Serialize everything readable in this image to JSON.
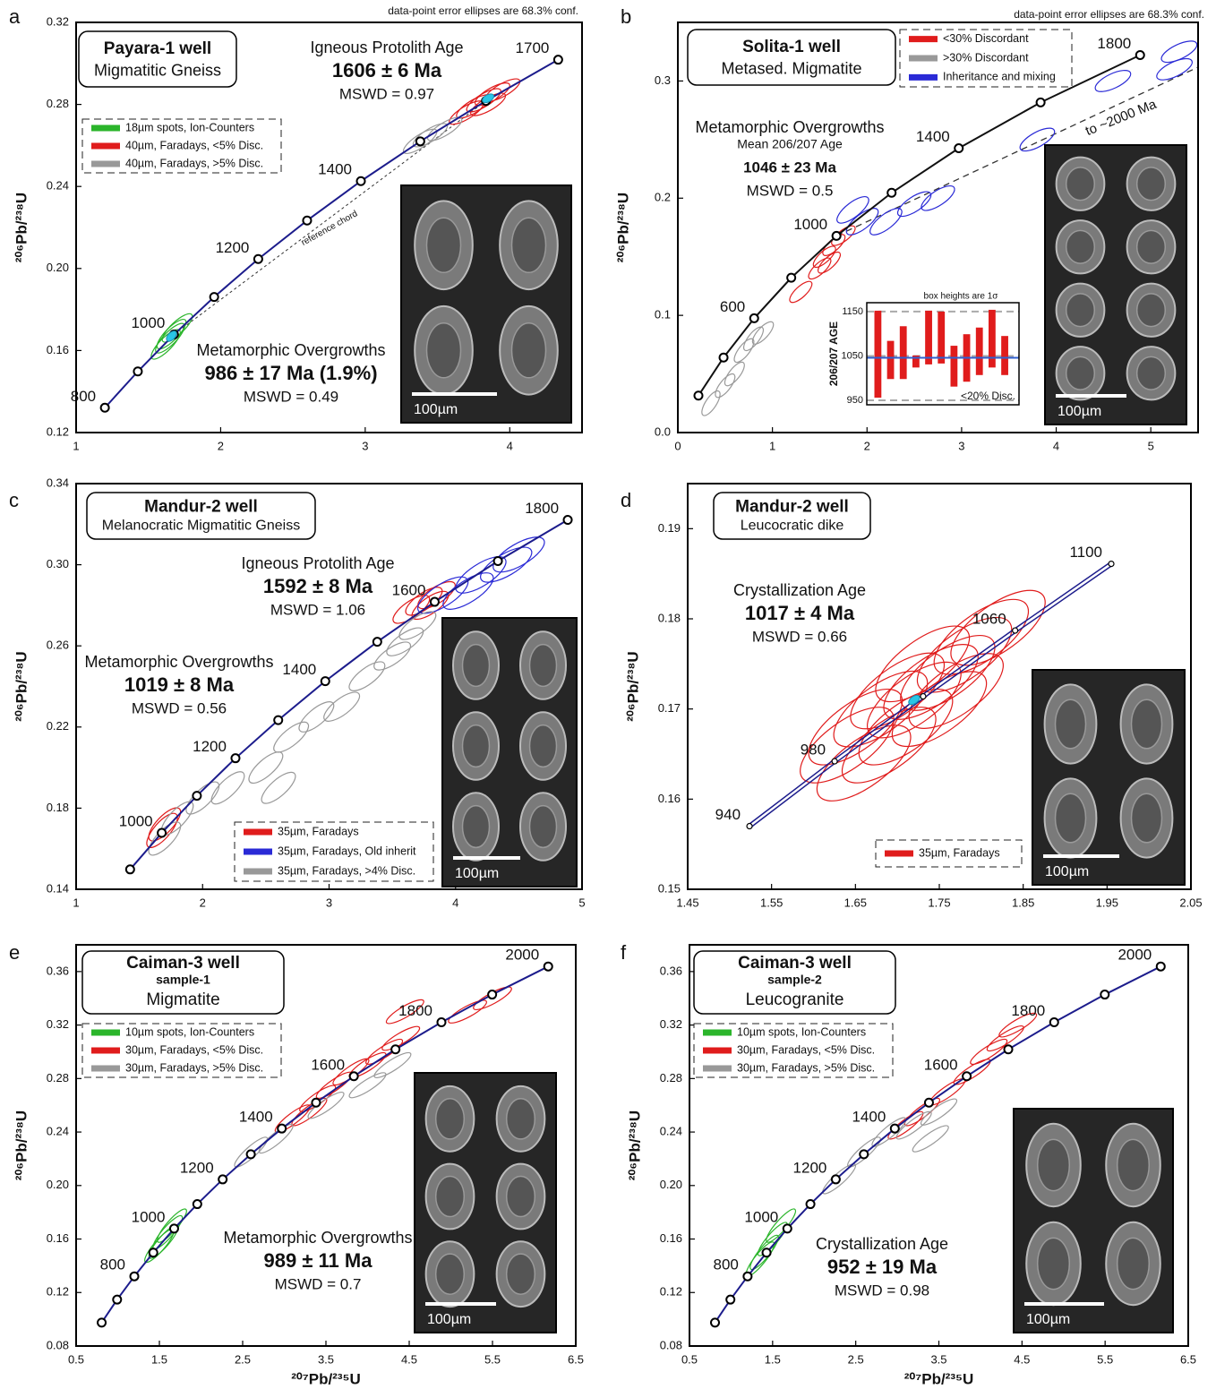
{
  "chart_data": [
    {
      "type": "concordia",
      "panel": "a",
      "note": "data-point error ellipses are 68.3% conf.",
      "title": {
        "well": "Payara-1 well",
        "rock": "Migmatitic Gneiss"
      },
      "y_label": "²⁰⁶Pb/²³⁸U",
      "xlim": [
        1,
        4.5
      ],
      "xticks": [
        1,
        2,
        3,
        4
      ],
      "ylim": [
        0.12,
        0.32
      ],
      "yticks": [
        0.12,
        0.16,
        {
          "value": 0.2,
          "label": "0.20"
        },
        0.24,
        0.28,
        0.32
      ],
      "concordia": {
        "color": "#1c1c8c",
        "x": [
          1.199,
          1.427,
          1.677,
          1.955,
          2.26,
          2.598,
          2.97,
          3.381,
          3.835,
          4.335
        ],
        "y": [
          0.1321,
          0.1498,
          0.1678,
          0.1861,
          0.2046,
          0.2234,
          0.2426,
          0.262,
          0.2817,
          0.3018
        ],
        "age_labels": [
          800,
          null,
          1000,
          null,
          1200,
          null,
          1400,
          null,
          null,
          1700
        ]
      },
      "series": [
        {
          "name": "18µm spots, Ion-Counters",
          "color": "#2bb52b",
          "x": [
            1.62,
            1.66,
            1.7,
            1.65
          ],
          "values": [
            0.163,
            0.168,
            0.171,
            0.166
          ]
        },
        {
          "name": "40µm, Faradays, <5% Disc.",
          "color": "#e01c1c",
          "x": [
            3.75,
            3.82,
            3.88,
            3.95,
            3.7,
            3.85
          ],
          "values": [
            0.279,
            0.282,
            0.285,
            0.287,
            0.276,
            0.28
          ]
        },
        {
          "name": "40µm, Faradays, >5% Disc.",
          "color": "#999999",
          "x": [
            3.45,
            3.55,
            3.38
          ],
          "values": [
            0.265,
            0.268,
            0.262
          ]
        }
      ],
      "means": {
        "color": "#29c5e6",
        "x": [
          1.66,
          3.85
        ],
        "values": [
          0.167,
          0.283
        ]
      },
      "age_blocks": [
        {
          "heading": "Igneous Protolith Age",
          "age": "1606 ± 6 Ma",
          "mswd": "MSWD = 0.97"
        },
        {
          "heading": "Metamorphic Overgrowths",
          "age": "986 ± 17 Ma (1.9%)",
          "mswd": "MSWD = 0.49"
        }
      ],
      "annotations": [
        "reference chord"
      ],
      "scale_bar": "100µm"
    },
    {
      "type": "concordia",
      "panel": "b",
      "note": "data-point error ellipses are 68.3% conf.",
      "title": {
        "well": "Solita-1 well",
        "rock": "Metased. Migmatite"
      },
      "y_label": "²⁰⁶Pb/²³⁸U",
      "xlim": [
        0,
        5.5
      ],
      "xticks": [
        0,
        1,
        2,
        3,
        4,
        5
      ],
      "ylim": [
        0,
        0.35
      ],
      "yticks": [
        {
          "value": 0,
          "label": "0.0"
        },
        0.1,
        0.2,
        0.3
      ],
      "concordia": {
        "color": "#111111",
        "x": [
          0.2177,
          0.4832,
          0.8069,
          1.199,
          1.677,
          2.26,
          2.97,
          3.835,
          4.887
        ],
        "y": [
          0.0315,
          0.064,
          0.0975,
          0.1321,
          0.1678,
          0.2046,
          0.2426,
          0.2817,
          0.3221
        ],
        "age_labels": [
          null,
          null,
          600,
          null,
          1000,
          null,
          1400,
          null,
          1800
        ]
      },
      "series": [
        {
          "name": "<30% Discordant",
          "color": "#e01c1c",
          "x": [
            1.55,
            1.6,
            1.65,
            1.75,
            1.5,
            1.3
          ],
          "values": [
            0.15,
            0.145,
            0.16,
            0.168,
            0.14,
            0.12
          ]
        },
        {
          "name": ">30% Discordant",
          "color": "#999999",
          "x": [
            0.8,
            0.9,
            0.7,
            0.6,
            0.5,
            0.35
          ],
          "values": [
            0.08,
            0.085,
            0.07,
            0.05,
            0.04,
            0.025
          ]
        },
        {
          "name": "Inheritance and mixing",
          "color": "#2a2ad6",
          "x": [
            1.85,
            1.95,
            2.2,
            2.5,
            2.75,
            3.8,
            4.6,
            5.3,
            5.25
          ],
          "values": [
            0.19,
            0.18,
            0.18,
            0.195,
            0.2,
            0.25,
            0.3,
            0.325,
            0.31
          ]
        }
      ],
      "age_blocks": [
        {
          "heading": "Metamorphic Overgrowths",
          "subheading": "Mean 206/207 Age",
          "age": "1046 ± 23 Ma",
          "mswd": "MSWD = 0.5"
        }
      ],
      "annotations": [
        "to ~2000 Ma"
      ],
      "inset": {
        "title": "box heights are 1σ",
        "y_label": "206/207 AGE",
        "note": "<20% Disc.",
        "color": "#e01c1c",
        "mean_color": "#3060d0",
        "ylim": [
          940,
          1170
        ],
        "yticks": [
          950,
          1050,
          1150
        ],
        "mean": 1046,
        "low": [
          956,
          998,
          998,
          1024,
          1031,
          1033,
          981,
          992,
          1007,
          1024,
          1007
        ],
        "high": [
          1152,
          1084,
          1117,
          1051,
          1152,
          1150,
          1073,
          1099,
          1114,
          1154,
          1095
        ]
      },
      "scale_bar": "100µm"
    },
    {
      "type": "concordia",
      "panel": "c",
      "title": {
        "well": "Mandur-2 well",
        "rock": "Melanocratic Migmatitic Gneiss"
      },
      "y_label": "²⁰⁶Pb/²³⁸U",
      "xlim": [
        1,
        5
      ],
      "xticks": [
        1,
        2,
        3,
        4,
        5
      ],
      "ylim": [
        0.14,
        0.34
      ],
      "yticks": [
        0.14,
        0.18,
        0.22,
        0.26,
        {
          "value": 0.3,
          "label": "0.30"
        },
        0.34
      ],
      "concordia": {
        "color": "#1c1c8c",
        "x": [
          1.427,
          1.677,
          1.955,
          2.26,
          2.598,
          2.97,
          3.381,
          3.835,
          4.335,
          4.887
        ],
        "y": [
          0.1498,
          0.1678,
          0.1861,
          0.2046,
          0.2234,
          0.2426,
          0.262,
          0.2817,
          0.3018,
          0.3221
        ],
        "age_labels": [
          null,
          1000,
          null,
          1200,
          null,
          1400,
          null,
          1600,
          null,
          1800
        ]
      },
      "series": [
        {
          "name": "35µm, Faradays",
          "color": "#e01c1c",
          "x": [
            1.68,
            1.7,
            3.65,
            3.75,
            3.8,
            3.85
          ],
          "values": [
            0.169,
            0.172,
            0.278,
            0.282,
            0.28,
            0.285
          ]
        },
        {
          "name": "35µm, Faradays, Old inherit",
          "color": "#2a2ad6",
          "x": [
            4.2,
            4.4,
            4.5,
            4.1,
            3.9
          ],
          "values": [
            0.295,
            0.3,
            0.305,
            0.287,
            0.285
          ]
        },
        {
          "name": "35µm, Faradays, >4% Disc.",
          "color": "#999999",
          "x": [
            1.7,
            1.8,
            2.0,
            2.2,
            2.5,
            2.6,
            2.7,
            2.9,
            3.1,
            3.3,
            3.5,
            3.6,
            3.7
          ],
          "values": [
            0.165,
            0.175,
            0.185,
            0.19,
            0.2,
            0.19,
            0.215,
            0.225,
            0.23,
            0.245,
            0.255,
            0.262,
            0.27
          ]
        }
      ],
      "age_blocks": [
        {
          "heading": "Igneous Protolith Age",
          "age": "1592 ± 8 Ma",
          "mswd": "MSWD = 1.06"
        },
        {
          "heading": "Metamorphic Overgrowths",
          "age": "1019 ± 8 Ma",
          "mswd": "MSWD = 0.56"
        }
      ],
      "scale_bar": "100µm"
    },
    {
      "type": "concordia",
      "panel": "d",
      "title": {
        "well": "Mandur-2 well",
        "rock": "Leucocratic dike"
      },
      "y_label": "²⁰⁶Pb/²³⁸U",
      "xlim": [
        1.45,
        2.05
      ],
      "xticks": [
        1.45,
        1.55,
        1.65,
        1.75,
        1.85,
        1.95,
        2.05
      ],
      "ylim": [
        0.15,
        0.195
      ],
      "yticks": [
        0.15,
        0.16,
        0.17,
        0.18,
        0.19
      ],
      "concordia": {
        "color": "#1c1c8c",
        "double": true,
        "x": [
          1.5237,
          1.6252,
          1.7307,
          1.8404,
          1.955
        ],
        "y": [
          0.157,
          0.1642,
          0.1714,
          0.1787,
          0.1861
        ],
        "age_labels": [
          940,
          980,
          null,
          1060,
          1100
        ]
      },
      "series": [
        {
          "name": "35µm, Faradays",
          "color": "#e01c1c",
          "x": [
            1.65,
            1.68,
            1.7,
            1.72,
            1.74,
            1.76,
            1.78,
            1.69,
            1.75,
            1.71,
            1.73,
            1.66,
            1.8,
            1.77,
            1.64,
            1.82
          ],
          "values": [
            0.168,
            0.17,
            0.172,
            0.171,
            0.173,
            0.174,
            0.176,
            0.166,
            0.17,
            0.168,
            0.175,
            0.164,
            0.178,
            0.172,
            0.166,
            0.179
          ]
        }
      ],
      "means": {
        "color": "#29c5e6",
        "x": [
          1.72
        ],
        "values": [
          0.171
        ]
      },
      "age_blocks": [
        {
          "heading": "Crystallization Age",
          "age": "1017 ± 4 Ma",
          "mswd": "MSWD = 0.66"
        }
      ],
      "scale_bar": "100µm"
    },
    {
      "type": "concordia",
      "panel": "e",
      "title": {
        "well": "Caiman-3 well",
        "sample": "sample-1",
        "rock": "Migmatite"
      },
      "x_label": "²⁰⁷Pb/²³⁵U",
      "y_label": "²⁰⁶Pb/²³⁸U",
      "xlim": [
        0.5,
        6.5
      ],
      "xticks": [
        0.5,
        1.5,
        2.5,
        3.5,
        4.5,
        5.5,
        6.5
      ],
      "ylim": [
        0.08,
        0.38
      ],
      "yticks": [
        0.08,
        0.12,
        0.16,
        {
          "value": 0.2,
          "label": "0.20"
        },
        0.24,
        0.28,
        0.32,
        0.36
      ],
      "concordia": {
        "color": "#1c1c8c",
        "x": [
          0.807,
          0.9924,
          1.199,
          1.427,
          1.677,
          1.955,
          2.26,
          2.598,
          2.97,
          3.381,
          3.835,
          4.335,
          4.887,
          5.496,
          6.169
        ],
        "y": [
          0.0975,
          0.1147,
          0.1321,
          0.1498,
          0.1678,
          0.1861,
          0.2046,
          0.2234,
          0.2426,
          0.262,
          0.2817,
          0.3018,
          0.3221,
          0.3428,
          0.3638
        ],
        "age_labels": [
          null,
          null,
          800,
          null,
          1000,
          null,
          1200,
          null,
          1400,
          null,
          1600,
          null,
          1800,
          null,
          2000
        ]
      },
      "series": [
        {
          "name": "10µm spots, Ion-Counters",
          "color": "#2bb52b",
          "x": [
            1.55,
            1.6,
            1.65,
            1.5
          ],
          "values": [
            0.158,
            0.165,
            0.17,
            0.155
          ]
        },
        {
          "name": "30µm, Faradays, <5% Disc.",
          "color": "#e01c1c",
          "x": [
            3.1,
            3.4,
            3.6,
            3.8,
            4.0,
            4.2,
            4.4,
            4.45,
            5.2,
            5.5,
            3.3
          ],
          "values": [
            0.25,
            0.265,
            0.275,
            0.285,
            0.29,
            0.3,
            0.31,
            0.33,
            0.33,
            0.34,
            0.255
          ]
        },
        {
          "name": "30µm, Faradays, >5% Disc.",
          "color": "#999999",
          "x": [
            2.6,
            2.9,
            3.5,
            4.0,
            4.3
          ],
          "values": [
            0.225,
            0.235,
            0.26,
            0.275,
            0.29
          ]
        }
      ],
      "age_blocks": [
        {
          "heading": "Metamorphic Overgrowths",
          "age": "989 ± 11 Ma",
          "mswd": "MSWD = 0.7"
        }
      ],
      "scale_bar": "100µm"
    },
    {
      "type": "concordia",
      "panel": "f",
      "title": {
        "well": "Caiman-3 well",
        "sample": "sample-2",
        "rock": "Leucogranite"
      },
      "x_label": "²⁰⁷Pb/²³⁵U",
      "y_label": "²⁰⁶Pb/²³⁸U",
      "xlim": [
        0.5,
        6.5
      ],
      "xticks": [
        0.5,
        1.5,
        2.5,
        3.5,
        4.5,
        5.5,
        6.5
      ],
      "ylim": [
        0.08,
        0.38
      ],
      "yticks": [
        0.08,
        0.12,
        0.16,
        {
          "value": 0.2,
          "label": "0.20"
        },
        0.24,
        0.28,
        0.32,
        0.36
      ],
      "concordia": {
        "color": "#1c1c8c",
        "x": [
          0.807,
          0.9924,
          1.199,
          1.427,
          1.677,
          1.955,
          2.26,
          2.598,
          2.97,
          3.381,
          3.835,
          4.335,
          4.887,
          5.496,
          6.169
        ],
        "y": [
          0.0975,
          0.1147,
          0.1321,
          0.1498,
          0.1678,
          0.1861,
          0.2046,
          0.2234,
          0.2426,
          0.262,
          0.2817,
          0.3018,
          0.3221,
          0.3428,
          0.3638
        ],
        "age_labels": [
          null,
          null,
          800,
          null,
          1000,
          null,
          1200,
          null,
          1400,
          null,
          1600,
          null,
          1800,
          null,
          2000
        ]
      },
      "series": [
        {
          "name": "10µm spots, Ion-Counters",
          "color": "#2bb52b",
          "x": [
            1.4,
            1.5,
            1.6,
            1.35
          ],
          "values": [
            0.15,
            0.16,
            0.17,
            0.145
          ]
        },
        {
          "name": "30µm, Faradays, <5% Disc.",
          "color": "#e01c1c",
          "x": [
            3.3,
            3.6,
            3.9,
            4.1,
            4.3,
            4.45,
            3.1
          ],
          "values": [
            0.255,
            0.27,
            0.285,
            0.3,
            0.31,
            0.32,
            0.245
          ]
        },
        {
          "name": "30µm, Faradays, >5% Disc.",
          "color": "#999999",
          "x": [
            2.3,
            2.6,
            2.9,
            3.2,
            3.5,
            3.4
          ],
          "values": [
            0.205,
            0.225,
            0.24,
            0.245,
            0.255,
            0.235
          ]
        }
      ],
      "age_blocks": [
        {
          "heading": "Crystallization Age",
          "age": "952 ± 19 Ma",
          "mswd": "MSWD = 0.98"
        }
      ],
      "scale_bar": "100µm"
    }
  ]
}
